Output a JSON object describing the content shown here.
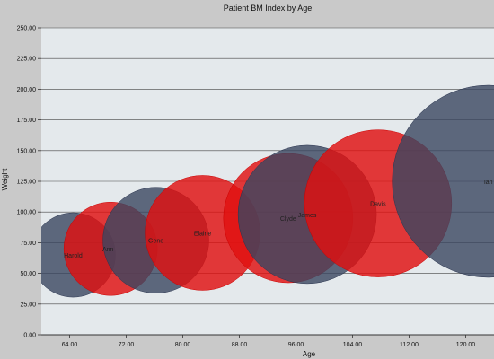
{
  "chart_data": {
    "type": "scatter",
    "subtype": "bubble",
    "title": "Patient BM Index by Age",
    "xlabel": "Age",
    "ylabel": "Weight",
    "xlim": [
      60,
      124
    ],
    "ylim": [
      0,
      250
    ],
    "xticks": [
      "64.00",
      "72.00",
      "80.00",
      "88.00",
      "96.00",
      "104.00",
      "112.00",
      "120.00"
    ],
    "xtick_values": [
      64,
      72,
      80,
      88,
      96,
      104,
      112,
      120
    ],
    "yticks": [
      "0.00",
      "25.00",
      "50.00",
      "75.00",
      "100.00",
      "125.00",
      "150.00",
      "175.00",
      "200.00",
      "225.00",
      "250.00"
    ],
    "ytick_values": [
      0,
      25,
      50,
      75,
      100,
      125,
      150,
      175,
      200,
      225,
      250
    ],
    "grid": "horizontal",
    "legend": "none",
    "colors": {
      "red": "#e01010",
      "slate": "#3a4660",
      "plot_bg": "#e4e9ec",
      "outer_bg": "#c9c9c9",
      "grid": "#444444"
    },
    "points": [
      {
        "name": "Harold",
        "x": 64.5,
        "y": 65,
        "size": 47,
        "color": "slate",
        "label_dx": 0
      },
      {
        "name": "Ann",
        "x": 69.8,
        "y": 70,
        "size": 52,
        "color": "red",
        "label_dx": -3
      },
      {
        "name": "Gene",
        "x": 76.2,
        "y": 77,
        "size": 59,
        "color": "slate",
        "label_dx": 0
      },
      {
        "name": "Elaine",
        "x": 82.8,
        "y": 83,
        "size": 64,
        "color": "red",
        "label_dx": 0
      },
      {
        "name": "Clyde",
        "x": 94.9,
        "y": 95,
        "size": 72,
        "color": "red",
        "label_dx": 0
      },
      {
        "name": "James",
        "x": 97.6,
        "y": 98,
        "size": 77,
        "color": "slate",
        "label_dx": 0
      },
      {
        "name": "Davis",
        "x": 107.6,
        "y": 107,
        "size": 82,
        "color": "red",
        "label_dx": 0
      },
      {
        "name": "Ian",
        "x": 123.2,
        "y": 125,
        "size": 107,
        "color": "slate",
        "label_dx": 0
      }
    ]
  }
}
